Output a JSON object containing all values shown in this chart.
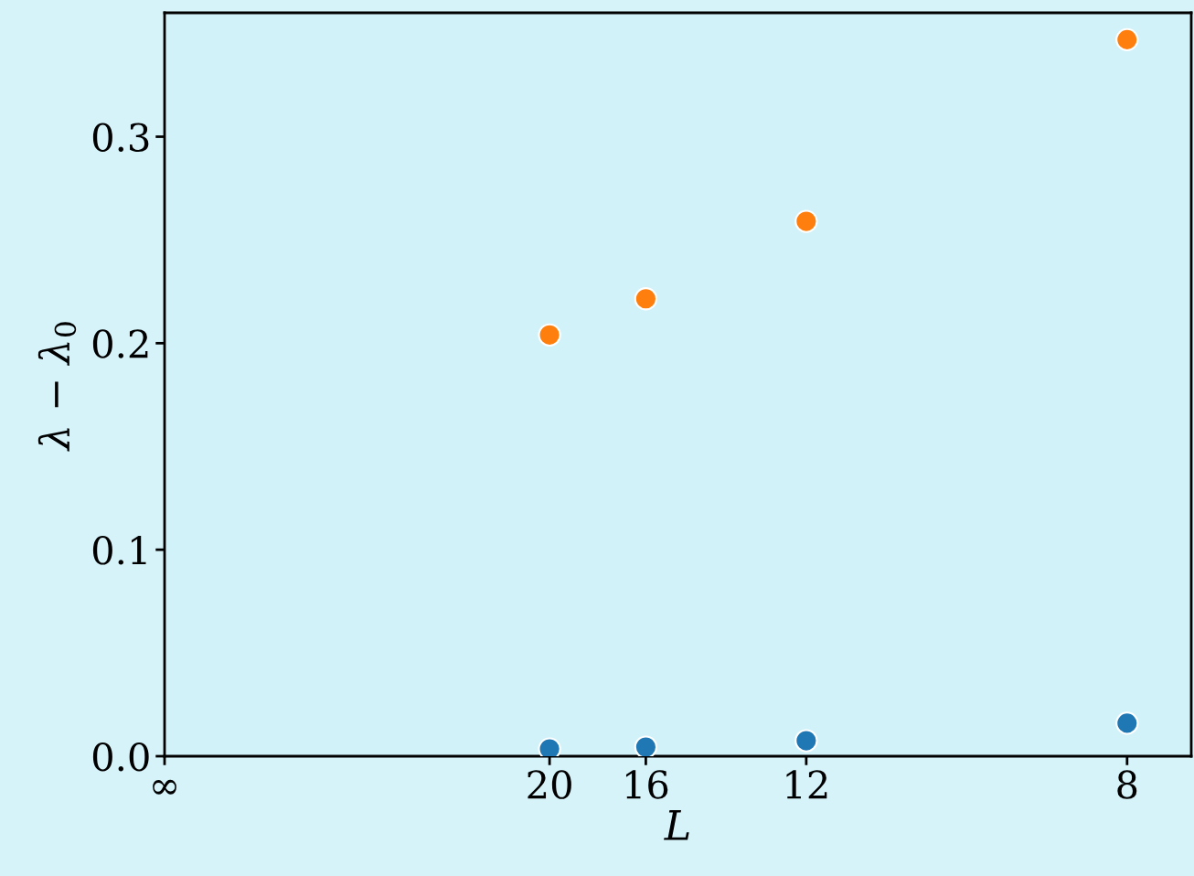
{
  "chart_data": {
    "type": "scatter",
    "xlabel": "L",
    "ylabel": "λ − λ$_{0}$",
    "ylim": [
      0,
      0.36
    ],
    "yticks": [
      {
        "value": 0,
        "label": "0.0"
      },
      {
        "value": 0.1,
        "label": "0.1"
      },
      {
        "value": 0.2,
        "label": "0.2"
      },
      {
        "value": 0.3,
        "label": "0.3"
      }
    ],
    "categories": [
      "∞",
      null,
      null,
      null,
      null,
      null,
      null,
      null,
      null,
      null,
      null,
      null,
      "20",
      null,
      null,
      "16",
      null,
      null,
      null,
      null,
      "12",
      null,
      null,
      null,
      null,
      null,
      null,
      null,
      null,
      null,
      "8",
      null,
      null
    ],
    "series": [
      {
        "color": "#ff7f0e",
        "values": [
          null,
          null,
          null,
          null,
          null,
          null,
          null,
          null,
          null,
          null,
          null,
          null,
          0.204,
          null,
          null,
          0.2215,
          null,
          null,
          null,
          null,
          0.259,
          null,
          null,
          null,
          null,
          null,
          null,
          null,
          null,
          null,
          0.347,
          null,
          null
        ]
      },
      {
        "color": "#1f77b4",
        "values": [
          null,
          null,
          null,
          null,
          null,
          null,
          null,
          null,
          null,
          null,
          null,
          null,
          0.0035,
          null,
          null,
          0.0044,
          null,
          null,
          null,
          null,
          0.0075,
          null,
          null,
          null,
          null,
          null,
          null,
          null,
          null,
          null,
          0.016,
          null,
          null
        ]
      }
    ],
    "marker": "circle",
    "grid": false,
    "legend": false
  }
}
